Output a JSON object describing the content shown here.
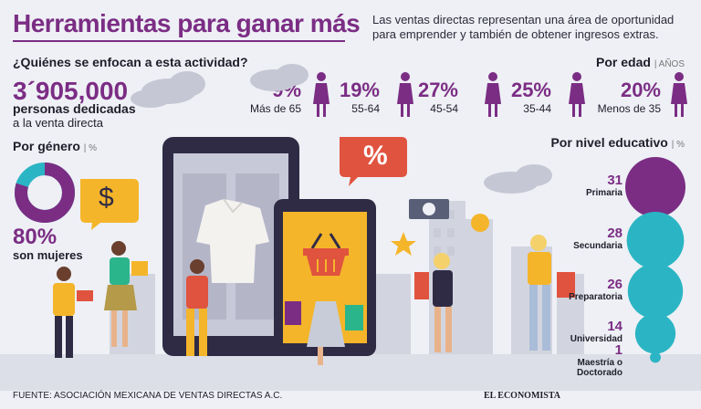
{
  "header": {
    "title": "Herramientas para ganar más",
    "intro": "Las ventas directas representan una área de oportunidad para emprender y también de obtener ingresos extras."
  },
  "who": {
    "question": "¿Quiénes se enfocan a esta actividad?",
    "total": "3´905,000",
    "label_bold": "personas dedicadas",
    "label": "a la venta directa"
  },
  "age": {
    "title": "Por edad",
    "unit": "| AÑOS",
    "groups": [
      {
        "pct": "9%",
        "label": "Más de 65"
      },
      {
        "pct": "19%",
        "label": "55-64"
      },
      {
        "pct": "27%",
        "label": "45-54"
      },
      {
        "pct": "25%",
        "label": "35-44"
      },
      {
        "pct": "20%",
        "label": "Menos de 35"
      }
    ]
  },
  "gender": {
    "title": "Por género",
    "unit": "| %",
    "value": "80%",
    "label": "son mujeres",
    "women_fraction": 0.8,
    "colors": {
      "women": "#7b2d84",
      "men": "#2bb5c4"
    }
  },
  "education": {
    "title": "Por nivel educativo",
    "unit": "| %",
    "levels": [
      {
        "value": "31",
        "label": "Primaria",
        "color": "#7b2d84"
      },
      {
        "value": "28",
        "label": "Secundaria",
        "color": "#2bb5c4"
      },
      {
        "value": "26",
        "label": "Preparatoria",
        "color": "#2bb5c4"
      },
      {
        "value": "14",
        "label": "Universidad",
        "color": "#2bb5c4"
      },
      {
        "value": "1",
        "label": "Maestría o Doctorado",
        "color": "#2bb5c4"
      }
    ]
  },
  "illustration": {
    "percent_bubble": "%",
    "dollar_bubble": "$"
  },
  "footer": {
    "source": "FUENTE: ASOCIACIÓN MEXICANA DE VENTAS DIRECTAS A.C.",
    "logo": "EL ECONOMISTA"
  }
}
